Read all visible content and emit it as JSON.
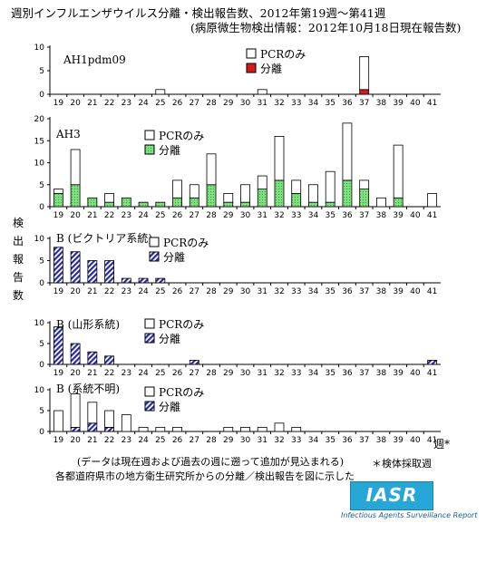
{
  "header": {
    "title": "週別インフルエンザウイルス分離・検出報告数、2012年第19週〜第41週",
    "subtitle": "(病原微生物検出情報：2012年10月18日現在報告数)"
  },
  "y_axis_label_chars": [
    "検",
    "出",
    "報",
    "告",
    "数"
  ],
  "week_unit_label": "週*",
  "footer": {
    "note_data": "(データは現在週および過去の週に遡って追加が見込まれる)",
    "note_source": "各都道府県市の地方衛生研究所からの分離／検出報告を図に示した",
    "note_asterisk": "＊検体採取週",
    "logo_text": "IASR",
    "logo_subtext": "Infectious Agents Surveillance Report"
  },
  "colors": {
    "pcr_only": "#ffffff",
    "ah1_isolation": "#d41a1a",
    "ah3_isolation": "#7fe07f",
    "b_isolation": "#2a2aa0",
    "logo_bg": "#27a7d8"
  },
  "chart_data": [
    {
      "type": "bar",
      "title": "AH1pdm09",
      "categories": [
        "19",
        "20",
        "21",
        "22",
        "23",
        "24",
        "25",
        "26",
        "27",
        "28",
        "29",
        "30",
        "31",
        "32",
        "33",
        "34",
        "35",
        "36",
        "37",
        "38",
        "39",
        "40",
        "41"
      ],
      "ylim": [
        0,
        10
      ],
      "yticks": [
        0,
        5,
        10
      ],
      "stacked": true,
      "legend": [
        "PCRのみ",
        "分離"
      ],
      "series": [
        {
          "name": "分離",
          "style": "solid-red",
          "values": [
            0,
            0,
            0,
            0,
            0,
            0,
            0,
            0,
            0,
            0,
            0,
            0,
            0,
            0,
            0,
            0,
            0,
            0,
            1,
            0,
            0,
            0,
            0
          ]
        },
        {
          "name": "PCRのみ",
          "style": "white",
          "values": [
            0,
            0,
            0,
            0,
            0,
            0,
            1,
            0,
            0,
            0,
            0,
            0,
            1,
            0,
            0,
            0,
            0,
            0,
            7,
            0,
            0,
            0,
            0
          ]
        }
      ]
    },
    {
      "type": "bar",
      "title": "AH3",
      "categories": [
        "19",
        "20",
        "21",
        "22",
        "23",
        "24",
        "25",
        "26",
        "27",
        "28",
        "29",
        "30",
        "31",
        "32",
        "33",
        "34",
        "35",
        "36",
        "37",
        "38",
        "39",
        "40",
        "41"
      ],
      "ylim": [
        0,
        20
      ],
      "yticks": [
        0,
        5,
        10,
        15,
        20
      ],
      "stacked": true,
      "legend": [
        "PCRのみ",
        "分離"
      ],
      "series": [
        {
          "name": "分離",
          "style": "dotted-green",
          "values": [
            3,
            5,
            2,
            1,
            2,
            1,
            1,
            2,
            2,
            5,
            1,
            1,
            4,
            6,
            3,
            1,
            1,
            6,
            4,
            0,
            2,
            0,
            0
          ]
        },
        {
          "name": "PCRのみ",
          "style": "white",
          "values": [
            1,
            8,
            0,
            2,
            0,
            0,
            0,
            4,
            3,
            7,
            2,
            4,
            3,
            10,
            3,
            4,
            7,
            13,
            2,
            2,
            12,
            0,
            3
          ]
        }
      ]
    },
    {
      "type": "bar",
      "title": "B (ビクトリア系統)",
      "categories": [
        "19",
        "20",
        "21",
        "22",
        "23",
        "24",
        "25",
        "26",
        "27",
        "28",
        "29",
        "30",
        "31",
        "32",
        "33",
        "34",
        "35",
        "36",
        "37",
        "38",
        "39",
        "40",
        "41"
      ],
      "ylim": [
        0,
        10
      ],
      "yticks": [
        0,
        5,
        10
      ],
      "stacked": true,
      "legend": [
        "PCRのみ",
        "分離"
      ],
      "series": [
        {
          "name": "分離",
          "style": "hatched-blue",
          "values": [
            8,
            7,
            5,
            5,
            1,
            1,
            1,
            0,
            0,
            0,
            0,
            0,
            0,
            0,
            0,
            0,
            0,
            0,
            0,
            0,
            0,
            0,
            0
          ]
        },
        {
          "name": "PCRのみ",
          "style": "white",
          "values": [
            0,
            0,
            0,
            0,
            0,
            0,
            0,
            0,
            0,
            0,
            0,
            0,
            0,
            0,
            0,
            0,
            0,
            0,
            0,
            0,
            0,
            0,
            0
          ]
        }
      ]
    },
    {
      "type": "bar",
      "title": "B (山形系統)",
      "categories": [
        "19",
        "20",
        "21",
        "22",
        "23",
        "24",
        "25",
        "26",
        "27",
        "28",
        "29",
        "30",
        "31",
        "32",
        "33",
        "34",
        "35",
        "36",
        "37",
        "38",
        "39",
        "40",
        "41"
      ],
      "ylim": [
        0,
        10
      ],
      "yticks": [
        0,
        5,
        10
      ],
      "stacked": true,
      "legend": [
        "PCRのみ",
        "分離"
      ],
      "series": [
        {
          "name": "分離",
          "style": "hatched-blue",
          "values": [
            9,
            5,
            3,
            2,
            0,
            0,
            0,
            0,
            1,
            0,
            0,
            0,
            0,
            0,
            0,
            0,
            0,
            0,
            0,
            0,
            0,
            0,
            1
          ]
        },
        {
          "name": "PCRのみ",
          "style": "white",
          "values": [
            0,
            0,
            0,
            0,
            0,
            0,
            0,
            0,
            0,
            0,
            0,
            0,
            0,
            0,
            0,
            0,
            0,
            0,
            0,
            0,
            0,
            0,
            0
          ]
        }
      ]
    },
    {
      "type": "bar",
      "title": "B (系統不明)",
      "categories": [
        "19",
        "20",
        "21",
        "22",
        "23",
        "24",
        "25",
        "26",
        "27",
        "28",
        "29",
        "30",
        "31",
        "32",
        "33",
        "34",
        "35",
        "36",
        "37",
        "38",
        "39",
        "40",
        "41"
      ],
      "ylim": [
        0,
        10
      ],
      "yticks": [
        0,
        5,
        10
      ],
      "stacked": true,
      "legend": [
        "PCRのみ",
        "分離"
      ],
      "series": [
        {
          "name": "分離",
          "style": "hatched-blue",
          "values": [
            0,
            1,
            2,
            1,
            0,
            0,
            0,
            0,
            0,
            0,
            0,
            0,
            0,
            0,
            0,
            0,
            0,
            0,
            0,
            0,
            0,
            0,
            0
          ]
        },
        {
          "name": "PCRのみ",
          "style": "white",
          "values": [
            5,
            8,
            5,
            4,
            4,
            1,
            1,
            1,
            0,
            0,
            1,
            1,
            1,
            2,
            1,
            0,
            0,
            0,
            0,
            0,
            0,
            0,
            0
          ]
        }
      ]
    }
  ]
}
